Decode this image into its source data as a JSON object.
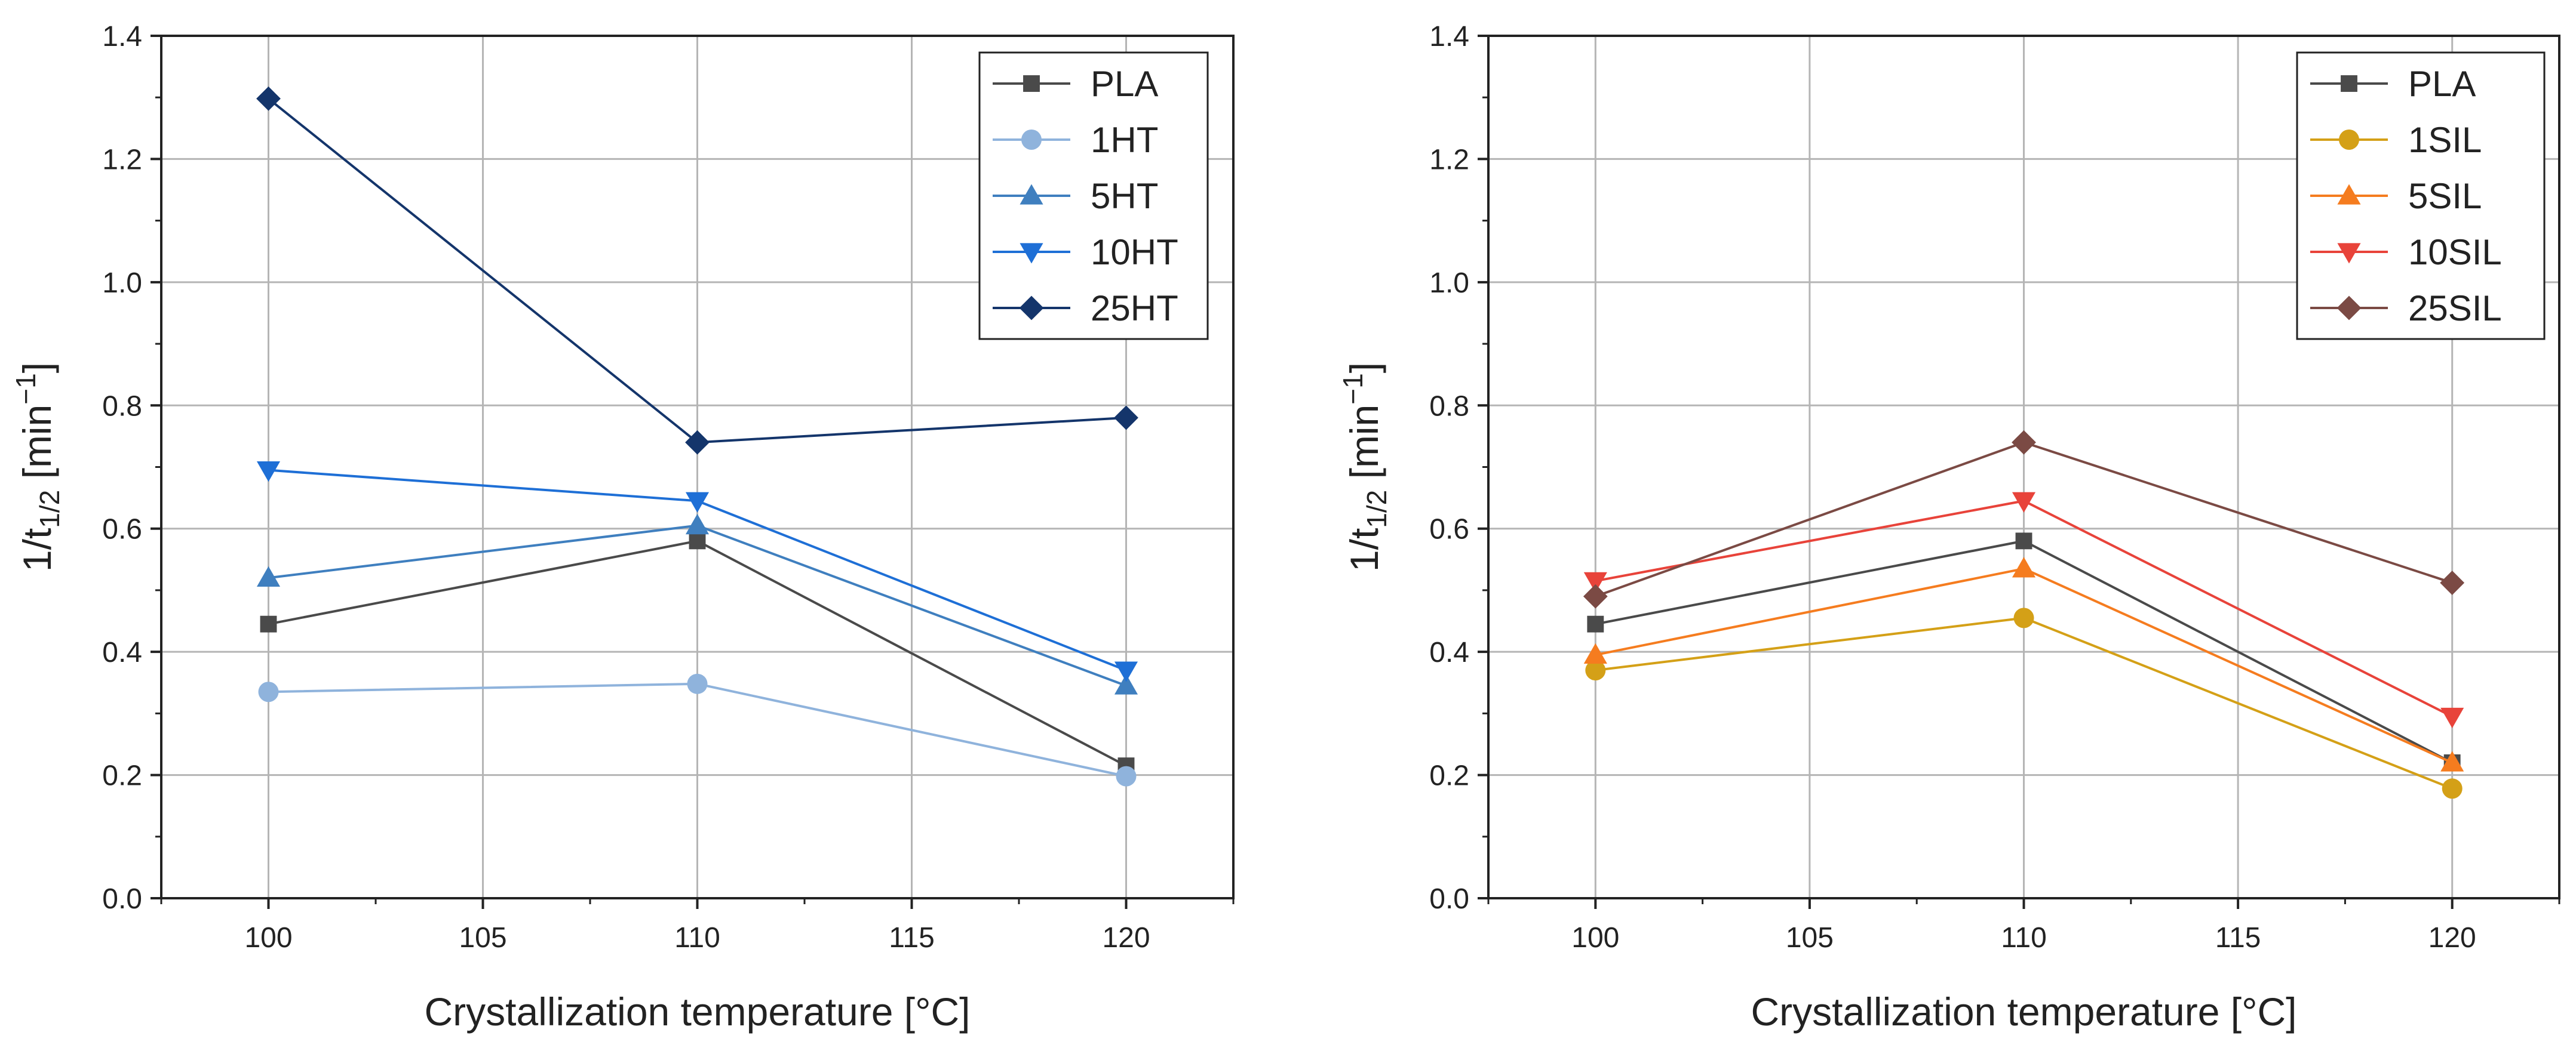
{
  "chart_data": [
    {
      "type": "line",
      "title": "",
      "xlabel": "Crystallization temperature [°C]",
      "ylabel": {
        "base": "1/t",
        "sub": "1/2",
        "mid": " [min",
        "sup": "−1",
        "end": "]"
      },
      "xlim": [
        97.5,
        122.5
      ],
      "ylim": [
        0,
        1.4
      ],
      "xticks": [
        100,
        105,
        110,
        115,
        120
      ],
      "xtick_labels": [
        "100",
        "105",
        "110",
        "115",
        "120"
      ],
      "yticks": [
        0.0,
        0.2,
        0.4,
        0.6,
        0.8,
        1.0,
        1.2,
        1.4
      ],
      "ytick_labels": [
        "0.0",
        "0.2",
        "0.4",
        "0.6",
        "0.8",
        "1.0",
        "1.2",
        "1.4"
      ],
      "grid": true,
      "legend_position": "top-right",
      "x": [
        100,
        110,
        120
      ],
      "series": [
        {
          "name": "PLA",
          "marker": "square",
          "color": "#4a4a4a",
          "values": [
            0.445,
            0.58,
            0.215
          ]
        },
        {
          "name": "1HT",
          "marker": "circle",
          "color": "#8fb3dc",
          "values": [
            0.335,
            0.348,
            0.198
          ]
        },
        {
          "name": "5HT",
          "marker": "triangle-up",
          "color": "#3f7fbf",
          "values": [
            0.52,
            0.605,
            0.345
          ]
        },
        {
          "name": "10HT",
          "marker": "triangle-down",
          "color": "#1e6fd6",
          "values": [
            0.695,
            0.645,
            0.37
          ]
        },
        {
          "name": "25HT",
          "marker": "diamond",
          "color": "#14356b",
          "values": [
            1.298,
            0.74,
            0.78
          ]
        }
      ]
    },
    {
      "type": "line",
      "title": "",
      "xlabel": "Crystallization temperature [°C]",
      "ylabel": {
        "base": "1/t",
        "sub": "1/2",
        "mid": " [min",
        "sup": "−1",
        "end": "]"
      },
      "xlim": [
        97.5,
        122.5
      ],
      "ylim": [
        0,
        1.4
      ],
      "xticks": [
        100,
        105,
        110,
        115,
        120
      ],
      "xtick_labels": [
        "100",
        "105",
        "110",
        "115",
        "120"
      ],
      "yticks": [
        0.0,
        0.2,
        0.4,
        0.6,
        0.8,
        1.0,
        1.2,
        1.4
      ],
      "ytick_labels": [
        "0.0",
        "0.2",
        "0.4",
        "0.6",
        "0.8",
        "1.0",
        "1.2",
        "1.4"
      ],
      "grid": true,
      "legend_position": "top-right",
      "x": [
        100,
        110,
        120
      ],
      "series": [
        {
          "name": "PLA",
          "marker": "square",
          "color": "#4a4a4a",
          "values": [
            0.445,
            0.58,
            0.22
          ]
        },
        {
          "name": "1SIL",
          "marker": "circle",
          "color": "#d4a017",
          "values": [
            0.37,
            0.455,
            0.178
          ]
        },
        {
          "name": "5SIL",
          "marker": "triangle-up",
          "color": "#f57c1f",
          "values": [
            0.395,
            0.535,
            0.22
          ]
        },
        {
          "name": "10SIL",
          "marker": "triangle-down",
          "color": "#e8433a",
          "values": [
            0.515,
            0.645,
            0.295
          ]
        },
        {
          "name": "25SIL",
          "marker": "diamond",
          "color": "#7b4a44",
          "values": [
            0.49,
            0.74,
            0.512
          ]
        }
      ]
    }
  ]
}
